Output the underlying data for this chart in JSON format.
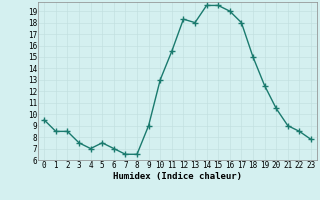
{
  "x": [
    0,
    1,
    2,
    3,
    4,
    5,
    6,
    7,
    8,
    9,
    10,
    11,
    12,
    13,
    14,
    15,
    16,
    17,
    18,
    19,
    20,
    21,
    22,
    23
  ],
  "y": [
    9.5,
    8.5,
    8.5,
    7.5,
    7.0,
    7.5,
    7.0,
    6.5,
    6.5,
    9.0,
    13.0,
    15.5,
    18.3,
    18.0,
    19.5,
    19.5,
    19.0,
    18.0,
    15.0,
    12.5,
    10.5,
    9.0,
    8.5,
    7.8
  ],
  "xlim": [
    -0.5,
    23.5
  ],
  "ylim": [
    6,
    19.8
  ],
  "yticks": [
    6,
    7,
    8,
    9,
    10,
    11,
    12,
    13,
    14,
    15,
    16,
    17,
    18,
    19
  ],
  "xticks": [
    0,
    1,
    2,
    3,
    4,
    5,
    6,
    7,
    8,
    9,
    10,
    11,
    12,
    13,
    14,
    15,
    16,
    17,
    18,
    19,
    20,
    21,
    22,
    23
  ],
  "xlabel": "Humidex (Indice chaleur)",
  "line_color": "#1a7a6e",
  "marker_color": "#1a7a6e",
  "bg_color": "#d4f0f0",
  "grid_color": "#c0dede",
  "xlabel_fontsize": 6.5,
  "tick_fontsize": 5.5,
  "linewidth": 1.0,
  "markersize": 2.0
}
